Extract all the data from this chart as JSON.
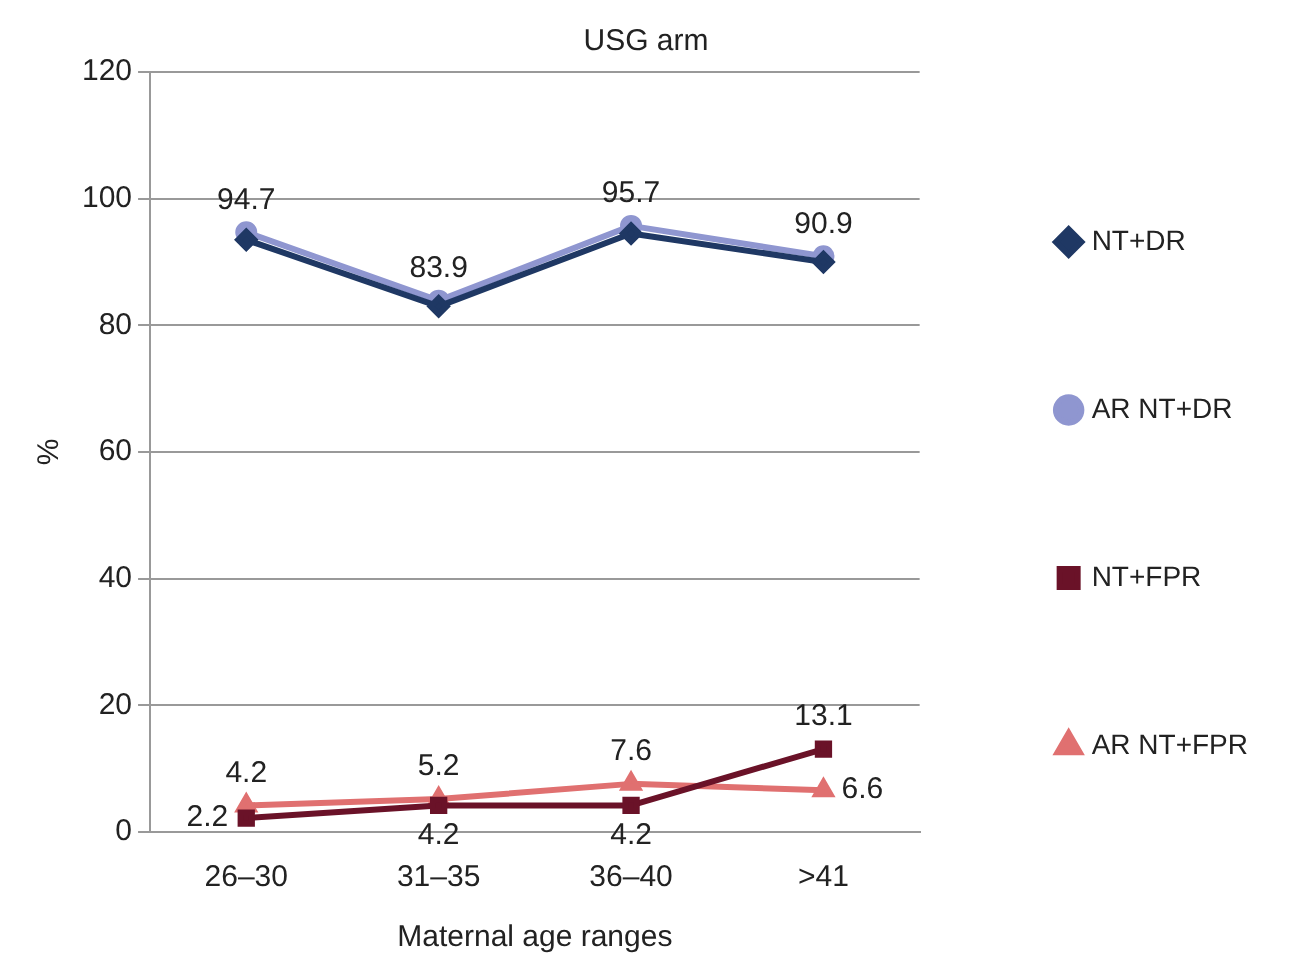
{
  "chart_data": {
    "type": "line",
    "title": "USG arm",
    "xlabel": "Maternal age ranges",
    "ylabel": "%",
    "categories": [
      "26–30",
      "31–35",
      "36–40",
      ">41"
    ],
    "series": [
      {
        "name": "NT+DR",
        "color": "#1f3864",
        "marker": "diamond",
        "values": [
          93.5,
          83,
          94.5,
          90
        ]
      },
      {
        "name": "AR NT+DR",
        "color": "#8f96d0",
        "marker": "circle",
        "values": [
          94.7,
          83.9,
          95.7,
          90.9
        ],
        "value_labels": [
          "94.7",
          "83.9",
          "95.7",
          "90.9"
        ]
      },
      {
        "name": "NT+FPR",
        "color": "#6a1228",
        "marker": "square",
        "values": [
          2.2,
          4.2,
          4.2,
          13.1
        ],
        "value_labels": [
          "2.2",
          "4.2",
          "4.2",
          "13.1"
        ]
      },
      {
        "name": "AR NT+FPR",
        "color": "#e07070",
        "marker": "triangle",
        "values": [
          4.2,
          5.2,
          7.6,
          6.6
        ],
        "value_labels": [
          "4.2",
          "5.2",
          "7.6",
          "6.6"
        ]
      }
    ],
    "ylim": [
      0,
      120
    ],
    "yticks": [
      0,
      20,
      40,
      60,
      80,
      100,
      120
    ],
    "grid": "y",
    "legend": "right"
  }
}
